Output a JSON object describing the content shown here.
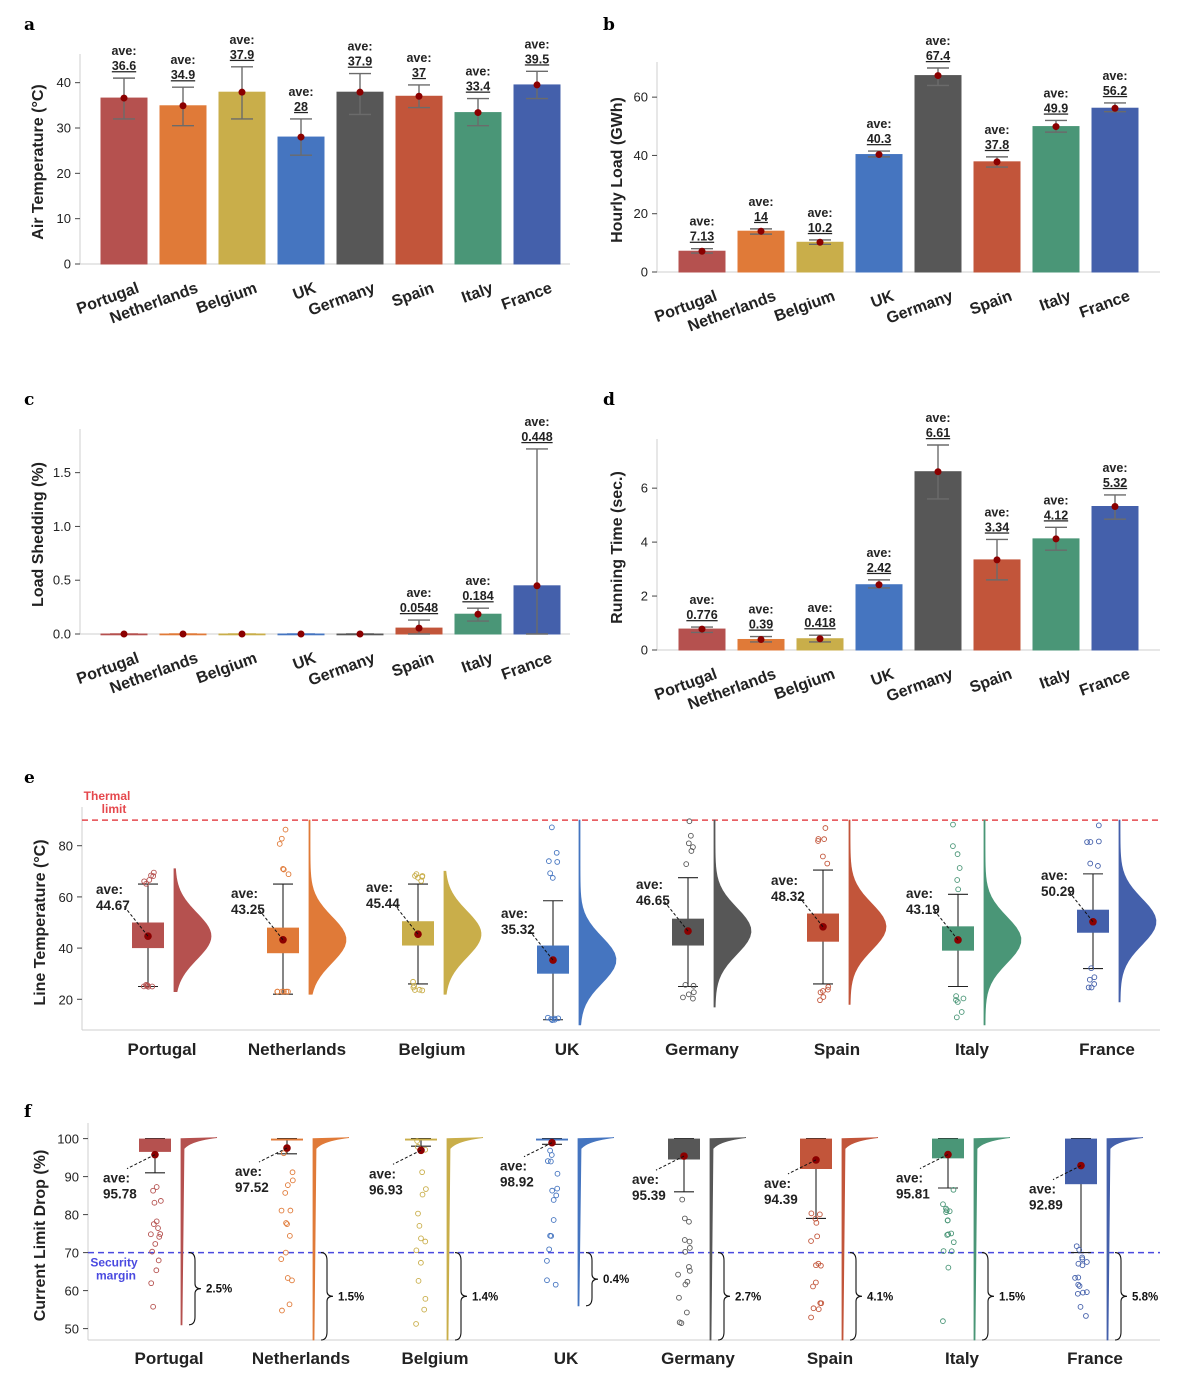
{
  "chart_data": [
    {
      "type": "bar",
      "panel": "a",
      "ylabel": "Air Temperature (°C)",
      "ylim": [
        0,
        45
      ],
      "yticks": [
        0,
        10,
        20,
        30,
        40
      ],
      "categories": [
        "Portugal",
        "Netherlands",
        "Belgium",
        "UK",
        "Germany",
        "Spain",
        "Italy",
        "France"
      ],
      "values": [
        36.6,
        34.9,
        37.9,
        28,
        37.9,
        37,
        33.4,
        39.5
      ],
      "labels": [
        "36.6",
        "34.9",
        "37.9",
        "28",
        "37.9",
        "37",
        "33.4",
        "39.5"
      ],
      "err_low": [
        32,
        30.5,
        32,
        24,
        33,
        34.5,
        30.5,
        36.5
      ],
      "err_high": [
        41,
        39,
        43.5,
        32,
        42,
        39.5,
        36.5,
        42.5
      ],
      "colors": [
        "#b5514f",
        "#e07a38",
        "#c9ae4a",
        "#4575c0",
        "#575757",
        "#c2553a",
        "#4a9677",
        "#4460ab"
      ]
    },
    {
      "type": "bar",
      "panel": "b",
      "ylabel": "Hourly Load (GWh)",
      "ylim": [
        0,
        70
      ],
      "yticks": [
        0,
        20,
        40,
        60
      ],
      "categories": [
        "Portugal",
        "Netherlands",
        "Belgium",
        "UK",
        "Germany",
        "Spain",
        "Italy",
        "France"
      ],
      "values": [
        7.13,
        14,
        10.2,
        40.3,
        67.4,
        37.8,
        49.9,
        56.2
      ],
      "labels": [
        "7.13",
        "14",
        "10.2",
        "40.3",
        "67.4",
        "37.8",
        "49.9",
        "56.2"
      ],
      "err_low": [
        6.5,
        13,
        9.5,
        39.5,
        64,
        36,
        48,
        55
      ],
      "err_high": [
        8,
        14.8,
        11,
        41.5,
        70,
        39.5,
        52,
        58
      ],
      "colors": [
        "#b5514f",
        "#e07a38",
        "#c9ae4a",
        "#4575c0",
        "#575757",
        "#c2553a",
        "#4a9677",
        "#4460ab"
      ]
    },
    {
      "type": "bar",
      "panel": "c",
      "ylabel": "Load Shedding (%)",
      "ylim": [
        0,
        1.85
      ],
      "yticks": [
        0.0,
        0.5,
        1.0,
        1.5
      ],
      "ytick_labels": [
        "0.0",
        "0.5",
        "1.0",
        "1.5"
      ],
      "categories": [
        "Portugal",
        "Netherlands",
        "Belgium",
        "UK",
        "Germany",
        "Spain",
        "Italy",
        "France"
      ],
      "values": [
        0,
        0,
        0,
        0,
        0,
        0.0548,
        0.184,
        0.448
      ],
      "labels": [
        null,
        null,
        null,
        null,
        null,
        "0.0548",
        "0.184",
        "0.448"
      ],
      "err_low": [
        0,
        0,
        0,
        0,
        0,
        0,
        0.12,
        0
      ],
      "err_high": [
        0,
        0,
        0,
        0,
        0,
        0.13,
        0.24,
        1.72
      ],
      "colors": [
        "#b5514f",
        "#e07a38",
        "#c9ae4a",
        "#4575c0",
        "#575757",
        "#c2553a",
        "#4a9677",
        "#4460ab"
      ]
    },
    {
      "type": "bar",
      "panel": "d",
      "ylabel": "Running Time (sec.)",
      "ylim": [
        0,
        7.6
      ],
      "yticks": [
        0,
        2,
        4,
        6
      ],
      "categories": [
        "Portugal",
        "Netherlands",
        "Belgium",
        "UK",
        "Germany",
        "Spain",
        "Italy",
        "France"
      ],
      "values": [
        0.776,
        0.39,
        0.418,
        2.42,
        6.61,
        3.34,
        4.12,
        5.32
      ],
      "labels": [
        "0.776",
        "0.39",
        "0.418",
        "2.42",
        "6.61",
        "3.34",
        "4.12",
        "5.32"
      ],
      "err_low": [
        0.65,
        0.3,
        0.3,
        2.3,
        5.6,
        2.6,
        3.7,
        4.85
      ],
      "err_high": [
        0.85,
        0.5,
        0.55,
        2.6,
        7.6,
        4.1,
        4.55,
        5.75
      ],
      "colors": [
        "#b5514f",
        "#e07a38",
        "#c9ae4a",
        "#4575c0",
        "#575757",
        "#c2553a",
        "#4a9677",
        "#4460ab"
      ]
    },
    {
      "type": "raincloud",
      "panel": "e",
      "ylabel": "Line Temperature (°C)",
      "ylim": [
        8,
        92
      ],
      "yticks": [
        20,
        40,
        60,
        80
      ],
      "threshold": {
        "value": 90,
        "label_line1": "Thermal",
        "label_line2": "limit",
        "color": "#e5484d"
      },
      "categories": [
        "Portugal",
        "Netherlands",
        "Belgium",
        "UK",
        "Germany",
        "Spain",
        "Italy",
        "France"
      ],
      "means": [
        44.67,
        43.25,
        45.44,
        35.32,
        46.65,
        48.32,
        43.19,
        50.29
      ],
      "mean_labels": [
        "44.67",
        "43.25",
        "45.44",
        "35.32",
        "46.65",
        "48.32",
        "43.19",
        "50.29"
      ],
      "q1": [
        40,
        38,
        41,
        30,
        41,
        42.5,
        39,
        46
      ],
      "q3": [
        50,
        48,
        50.5,
        41,
        51.5,
        53.5,
        48.5,
        55
      ],
      "whisk_low": [
        25,
        22,
        26,
        12,
        25,
        26,
        25,
        32
      ],
      "whisk_high": [
        65,
        65,
        65,
        58.5,
        67.5,
        70.5,
        61,
        69
      ],
      "dist_low": [
        23,
        22,
        22,
        10,
        17,
        18,
        10,
        19
      ],
      "dist_high": [
        71,
        90,
        70,
        90,
        90,
        90,
        90,
        90
      ],
      "colors": [
        "#b5514f",
        "#e07a38",
        "#c9ae4a",
        "#4575c0",
        "#575757",
        "#c2553a",
        "#4a9677",
        "#4460ab"
      ]
    },
    {
      "type": "raincloud",
      "panel": "f",
      "ylabel": "Current Limit Drop (%)",
      "ylim": [
        47,
        102
      ],
      "yticks": [
        50,
        60,
        70,
        80,
        90,
        100
      ],
      "threshold": {
        "value": 70,
        "label_line1": "Security",
        "label_line2": "margin",
        "color": "#4a4ae0"
      },
      "categories": [
        "Portugal",
        "Netherlands",
        "Belgium",
        "UK",
        "Germany",
        "Spain",
        "Italy",
        "France"
      ],
      "means": [
        95.78,
        97.52,
        96.93,
        98.92,
        95.39,
        94.39,
        95.81,
        92.89
      ],
      "mean_labels": [
        "95.78",
        "97.52",
        "96.93",
        "98.92",
        "95.39",
        "94.39",
        "95.81",
        "92.89"
      ],
      "below_margin_pct": [
        "2.5%",
        "1.5%",
        "1.4%",
        "0.4%",
        "2.7%",
        "4.1%",
        "1.5%",
        "5.8%"
      ],
      "q1": [
        96.5,
        99.5,
        99.5,
        99.5,
        94.5,
        92,
        94.8,
        88
      ],
      "q3": [
        100,
        100,
        100,
        100,
        100,
        100,
        100,
        100
      ],
      "whisk_low": [
        91,
        96,
        98,
        98.5,
        86,
        79,
        87,
        70
      ],
      "dist_low": [
        51,
        47,
        47,
        56,
        47,
        47,
        47,
        47
      ],
      "colors": [
        "#b5514f",
        "#e07a38",
        "#c9ae4a",
        "#4575c0",
        "#575757",
        "#c2553a",
        "#4a9677",
        "#4460ab"
      ]
    }
  ],
  "common": {
    "ave_prefix": "ave:",
    "point_color": "#8b0000",
    "err_color": "#666666"
  }
}
